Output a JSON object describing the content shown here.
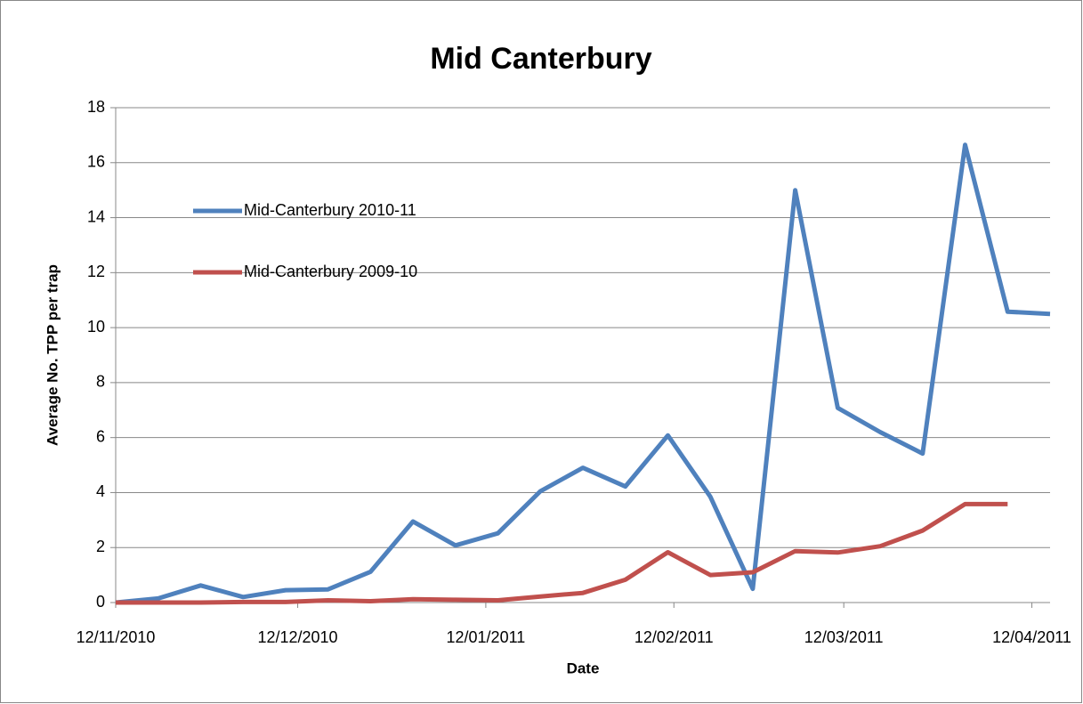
{
  "chart_data": {
    "type": "line",
    "title": "Mid Canterbury",
    "x_label": "Date",
    "y_label": "Average No. TPP per trap",
    "x": [
      "2010-11-12",
      "2010-11-19",
      "2010-11-26",
      "2010-12-03",
      "2010-12-10",
      "2010-12-17",
      "2010-12-24",
      "2010-12-31",
      "2011-01-07",
      "2011-01-14",
      "2011-01-21",
      "2011-01-28",
      "2011-02-04",
      "2011-02-11",
      "2011-02-18",
      "2011-02-25",
      "2011-03-04",
      "2011-03-11",
      "2011-03-18",
      "2011-03-25",
      "2011-04-01",
      "2011-04-08",
      "2011-04-15"
    ],
    "series": [
      {
        "name": "Mid-Canterbury 2010-11",
        "color": "#4f81bd",
        "values": [
          0,
          0.15,
          0.62,
          0.2,
          0.45,
          0.48,
          1.12,
          2.95,
          2.08,
          2.52,
          4.05,
          4.9,
          4.22,
          6.08,
          3.85,
          0.5,
          15.0,
          7.08,
          6.2,
          5.42,
          16.65,
          10.58,
          10.5
        ]
      },
      {
        "name": "Mid-Canterbury 2009-10",
        "color": "#c0504d",
        "values": [
          0,
          0,
          0,
          0.02,
          0.02,
          0.08,
          0.05,
          0.12,
          0.1,
          0.08,
          0.22,
          0.35,
          0.83,
          1.83,
          1.0,
          1.1,
          1.87,
          1.82,
          2.05,
          2.62,
          3.58,
          3.58,
          null
        ]
      }
    ],
    "xlim": [
      "2010-11-12",
      "2011-04-15"
    ],
    "xticks": [
      {
        "value": "2010-11-12",
        "label": "12/11/2010"
      },
      {
        "value": "2010-12-12",
        "label": "12/12/2010"
      },
      {
        "value": "2011-01-12",
        "label": "12/01/2011"
      },
      {
        "value": "2011-02-12",
        "label": "12/02/2011"
      },
      {
        "value": "2011-03-12",
        "label": "12/03/2011"
      },
      {
        "value": "2011-04-12",
        "label": "12/04/2011"
      }
    ],
    "ylim": [
      0,
      18
    ],
    "yticks": [
      0,
      2,
      4,
      6,
      8,
      10,
      12,
      14,
      16,
      18
    ],
    "grid": true,
    "legend": "left"
  }
}
